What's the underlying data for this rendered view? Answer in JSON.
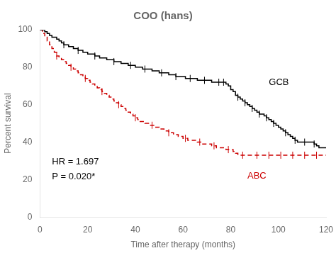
{
  "chart_data": {
    "type": "step",
    "title": "COO (hans)",
    "x_label": "Time after therapy (months)",
    "y_label": "Percent survival",
    "xlim": [
      0,
      120
    ],
    "ylim": [
      0,
      100
    ],
    "xticks": [
      0,
      20,
      40,
      60,
      80,
      100,
      120
    ],
    "yticks": [
      0,
      20,
      40,
      60,
      80,
      100
    ],
    "grid": false,
    "legend": false,
    "x": [
      0,
      1,
      2,
      3,
      4,
      5,
      6,
      7,
      8,
      9,
      10,
      11,
      12,
      13,
      14,
      15,
      16,
      17,
      18,
      19,
      20,
      21,
      22,
      23,
      24,
      25,
      26,
      27,
      28,
      29,
      30,
      31,
      32,
      33,
      34,
      35,
      36,
      37,
      38,
      39,
      40,
      41,
      42,
      43,
      44,
      45,
      46,
      47,
      48,
      49,
      50,
      51,
      52,
      53,
      54,
      55,
      56,
      57,
      58,
      59,
      60,
      61,
      62,
      63,
      64,
      65,
      66,
      67,
      68,
      69,
      70,
      71,
      72,
      73,
      74,
      75,
      76,
      77,
      78,
      79,
      80,
      81,
      82,
      83,
      84,
      85,
      86,
      87,
      88,
      89,
      90,
      91,
      92,
      93,
      94,
      95,
      96,
      97,
      98,
      99,
      100,
      101,
      102,
      103,
      104,
      105,
      106,
      107,
      108,
      109,
      110,
      111,
      112,
      113,
      114,
      115,
      116,
      117,
      118,
      119,
      120
    ],
    "series": [
      {
        "name": "GCB",
        "color": "#000000",
        "line_style": "solid",
        "label_x": 96,
        "label_y": 72,
        "values": [
          100,
          100,
          99,
          98,
          97,
          96,
          96,
          95,
          94,
          93,
          92,
          92,
          91,
          91,
          90,
          90,
          89,
          89,
          88,
          88,
          87,
          87,
          87,
          86,
          86,
          85,
          85,
          85,
          84,
          84,
          84,
          83,
          83,
          83,
          82,
          82,
          82,
          81,
          81,
          81,
          80,
          80,
          80,
          79,
          79,
          79,
          79,
          78,
          78,
          78,
          77,
          77,
          77,
          77,
          76,
          76,
          76,
          75,
          75,
          75,
          75,
          74,
          74,
          74,
          74,
          74,
          73,
          73,
          73,
          73,
          73,
          73,
          72,
          72,
          72,
          72,
          72,
          72,
          71,
          70,
          68,
          67,
          65,
          64,
          63,
          62,
          61,
          60,
          59,
          58,
          57,
          56,
          55,
          55,
          54,
          53,
          52,
          51,
          50,
          49,
          48,
          47,
          46,
          45,
          44,
          43,
          42,
          41,
          40,
          40,
          40,
          40,
          40,
          40,
          40,
          39,
          38,
          37,
          37,
          37,
          37
        ],
        "censor_x": [
          10,
          16,
          23,
          31,
          38,
          44,
          51,
          57,
          63,
          69,
          75,
          77,
          83,
          86,
          89,
          92,
          95,
          98,
          103,
          107,
          111,
          115
        ],
        "censor_y": [
          92,
          89,
          86,
          83,
          81,
          79,
          77,
          75,
          74,
          73,
          72,
          72,
          64,
          61,
          58,
          55,
          53,
          50,
          45,
          41,
          40,
          39
        ]
      },
      {
        "name": "ABC",
        "color": "#cc0000",
        "line_style": "dashed",
        "label_x": 87,
        "label_y": 22,
        "values": [
          100,
          98,
          96,
          94,
          92,
          90,
          88,
          86,
          85,
          84,
          83,
          82,
          81,
          80,
          79,
          78,
          77,
          76,
          75,
          74,
          73,
          72,
          71,
          70,
          69,
          68,
          67,
          66,
          65,
          64,
          63,
          62,
          61,
          60,
          59,
          58,
          57,
          56,
          55,
          54,
          53,
          52,
          51,
          51,
          50,
          50,
          49,
          49,
          48,
          48,
          47,
          47,
          46,
          46,
          45,
          45,
          44,
          44,
          43,
          43,
          42,
          42,
          41,
          41,
          41,
          41,
          40,
          40,
          39,
          39,
          39,
          39,
          38,
          38,
          37,
          37,
          37,
          37,
          36,
          36,
          36,
          35,
          34,
          33,
          33,
          33,
          33,
          33,
          33,
          33,
          33,
          33,
          33,
          33,
          33,
          33,
          33,
          33,
          33,
          33,
          33,
          33,
          33,
          33,
          33,
          33,
          33,
          33,
          33,
          33,
          33,
          33,
          33,
          33,
          33,
          33,
          33,
          33,
          33,
          33,
          33
        ],
        "censor_x": [
          7,
          13,
          19,
          26,
          33,
          40,
          47,
          54,
          61,
          67,
          73,
          79,
          85,
          91,
          96,
          101,
          106,
          111,
          116
        ],
        "censor_y": [
          86,
          80,
          74,
          67,
          60,
          53,
          49,
          45,
          42,
          40,
          38,
          36,
          33,
          33,
          33,
          33,
          33,
          33,
          33
        ]
      }
    ],
    "annotations": [
      {
        "text": "HR = 1.697",
        "x": 5,
        "y": 32
      },
      {
        "text": "P = 0.020*",
        "x": 5,
        "y": 24
      }
    ]
  }
}
